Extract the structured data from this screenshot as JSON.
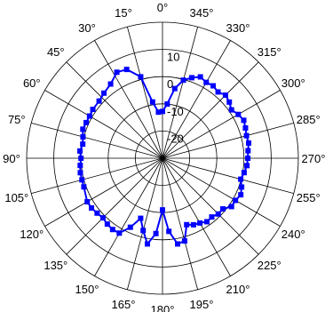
{
  "chart_data": {
    "type": "polar-line",
    "title": "",
    "angle_direction": "clockwise",
    "zero_angle_position": "top",
    "angle_ticks": [
      0,
      345,
      330,
      315,
      300,
      285,
      270,
      255,
      240,
      225,
      210,
      195,
      180,
      165,
      150,
      135,
      120,
      105,
      90,
      75,
      60,
      45,
      30,
      15
    ],
    "angle_tick_labels": [
      "0°",
      "345°",
      "330°",
      "315°",
      "300°",
      "285°",
      "270°",
      "255°",
      "240°",
      "225°",
      "210°",
      "195°",
      "180°",
      "165°",
      "150°",
      "135°",
      "120°",
      "105°",
      "90°",
      "75°",
      "60°",
      "45°",
      "30°",
      "15°"
    ],
    "radial_range": [
      -30,
      20
    ],
    "radial_ticks": [
      -20,
      -10,
      0,
      10
    ],
    "radial_tick_labels": [
      "-20",
      "-10",
      "0",
      "10"
    ],
    "grid": true,
    "line_color": "#0000ff",
    "marker": "square",
    "series": [
      {
        "angles": [
          0,
          5,
          10,
          15,
          22,
          28,
          35,
          42,
          48,
          55,
          60,
          65,
          70,
          75,
          80,
          85,
          90,
          95,
          100,
          105,
          110,
          120,
          125,
          130,
          135,
          140,
          145,
          150,
          155,
          160,
          165,
          170,
          175,
          180,
          185,
          190,
          195,
          200,
          205,
          210,
          215,
          220,
          225,
          230,
          235,
          240,
          245,
          250,
          255,
          260,
          265,
          270,
          275,
          280,
          285,
          290,
          295,
          300,
          305,
          310,
          315,
          320,
          325,
          330,
          335,
          340,
          345,
          350,
          355
        ],
        "r": [
          -12.8,
          -13.0,
          -9.0,
          1.0,
          5.2,
          5.8,
          3.3,
          2.2,
          1.4,
          1.3,
          1.0,
          1.0,
          1.2,
          0.3,
          -0.2,
          0.5,
          0.0,
          0.4,
          0.7,
          0.7,
          0.8,
          2.0,
          1.9,
          1.4,
          1.0,
          1.6,
          2.0,
          1.8,
          -2.0,
          -6.5,
          -2.5,
          2.0,
          -2.2,
          -11.0,
          -3.0,
          2.0,
          1.5,
          -4.0,
          -3.0,
          -2.5,
          -1.5,
          -1.8,
          -1.0,
          -1.0,
          1.0,
          1.0,
          1.8,
          1.0,
          -0.2,
          0.5,
          1.2,
          1.4,
          1.6,
          2.2,
          2.0,
          2.5,
          3.0,
          2.2,
          1.0,
          2.1,
          2.8,
          1.8,
          2.5,
          2.2,
          3.0,
          1.5,
          -0.3,
          -4.0,
          -10.0
        ]
      }
    ]
  }
}
